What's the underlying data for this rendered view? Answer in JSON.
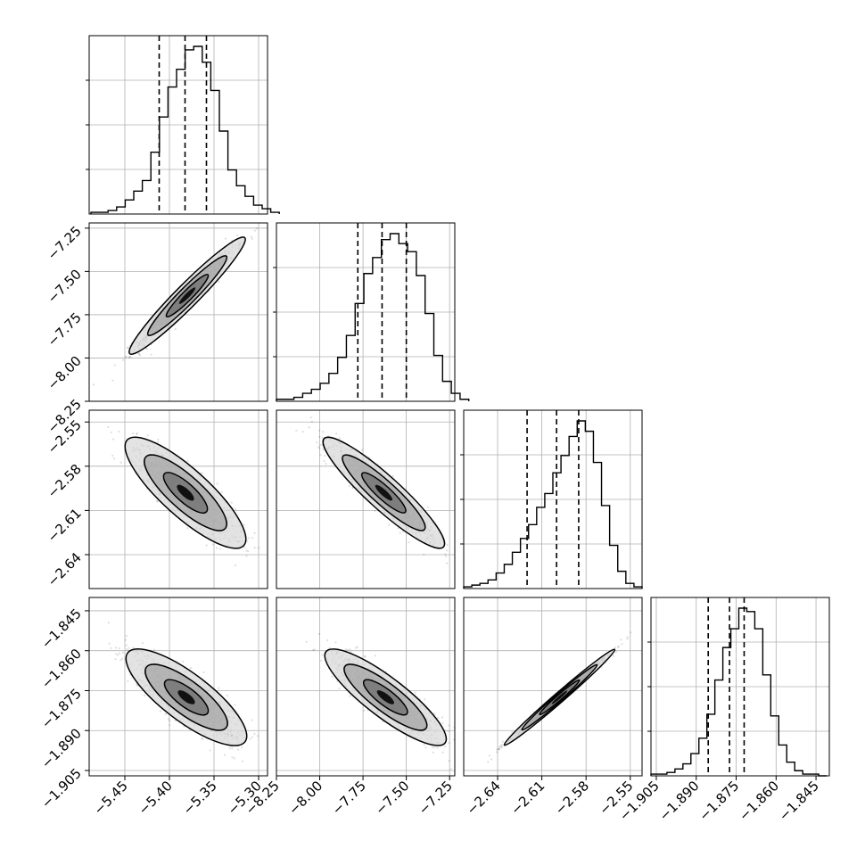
{
  "chart_data": {
    "type": "corner",
    "n_params": 4,
    "grid": true,
    "params": [
      {
        "range": [
          -5.49,
          -5.29
        ],
        "x_ticks": [
          "−5.45",
          "−5.40",
          "−5.35",
          "−5.30"
        ],
        "x_tick_values": [
          -5.45,
          -5.4,
          -5.35,
          -5.3
        ],
        "quantiles": [
          -5.4115,
          -5.3825,
          -5.3585
        ],
        "hist_edges_start": -5.488,
        "hist_bin_width": 0.0096,
        "hist_counts": [
          1,
          1,
          2,
          4,
          8,
          13,
          19,
          35,
          55,
          72,
          82,
          93,
          95,
          86,
          70,
          47,
          25,
          16,
          10,
          5,
          3,
          1
        ]
      },
      {
        "range": [
          -8.25,
          -7.22
        ],
        "x_ticks": [
          "−8.25",
          "−8.00",
          "−7.75",
          "−7.50",
          "−7.25"
        ],
        "x_tick_values": [
          -8.25,
          -8.0,
          -7.75,
          -7.5,
          -7.25
        ],
        "y_ticks": [
          "−8.25",
          "−8.00",
          "−7.75",
          "−7.50",
          "−7.25"
        ],
        "quantiles": [
          -7.78,
          -7.64,
          -7.5
        ],
        "hist_edges_start": -8.25,
        "hist_bin_width": 0.0505,
        "hist_counts": [
          1,
          1,
          2,
          4,
          6,
          9,
          14,
          22,
          33,
          49,
          64,
          72,
          81,
          84,
          79,
          75,
          63,
          44,
          23,
          10,
          4,
          1
        ]
      },
      {
        "range": [
          -2.663,
          -2.542
        ],
        "x_ticks": [
          "−2.64",
          "−2.61",
          "−2.58",
          "−2.55"
        ],
        "x_tick_values": [
          -2.64,
          -2.61,
          -2.58,
          -2.55
        ],
        "y_ticks": [
          "−2.55",
          "−2.58",
          "−2.61",
          "−2.64"
        ],
        "y_tick_values": [
          -2.55,
          -2.58,
          -2.61,
          -2.64
        ],
        "quantiles": [
          -2.62,
          -2.6,
          -2.585
        ],
        "hist_edges_start": -2.663,
        "hist_bin_width": 0.0055,
        "hist_counts": [
          1,
          2,
          3,
          5,
          9,
          14,
          21,
          29,
          37,
          47,
          55,
          67,
          77,
          88,
          97,
          91,
          73,
          48,
          25,
          10,
          3,
          1
        ]
      },
      {
        "range": [
          -1.907,
          -1.84
        ],
        "x_ticks": [
          "−1.905",
          "−1.890",
          "−1.875",
          "−1.860",
          "−1.845"
        ],
        "x_tick_values": [
          -1.905,
          -1.89,
          -1.875,
          -1.86,
          -1.845
        ],
        "y_ticks": [
          "−1.845",
          "−1.860",
          "−1.875",
          "−1.890",
          "−1.905"
        ],
        "y_tick_values": [
          -1.845,
          -1.86,
          -1.875,
          -1.89,
          -1.905
        ],
        "quantiles": [
          -1.8855,
          -1.8775,
          -1.872
        ],
        "hist_edges_start": -1.907,
        "hist_bin_width": 0.003,
        "hist_counts": [
          1,
          1,
          2,
          4,
          7,
          13,
          22,
          36,
          56,
          75,
          86,
          98,
          96,
          86,
          59,
          35,
          18,
          8,
          3,
          1,
          1,
          0
        ]
      }
    ],
    "joint": [
      {
        "row": 1,
        "col": 0,
        "mean": [
          -5.38,
          -7.64
        ],
        "std": [
          0.026,
          0.135
        ],
        "rho": 0.97
      },
      {
        "row": 2,
        "col": 0,
        "mean": [
          -5.382,
          -2.598
        ],
        "std": [
          0.027,
          0.015
        ],
        "rho": -0.85
      },
      {
        "row": 2,
        "col": 1,
        "mean": [
          -7.63,
          -2.598
        ],
        "std": [
          0.14,
          0.015
        ],
        "rho": -0.93
      },
      {
        "row": 3,
        "col": 0,
        "mean": [
          -5.381,
          -1.8775
        ],
        "std": [
          0.027,
          0.0072
        ],
        "rho": -0.82
      },
      {
        "row": 3,
        "col": 1,
        "mean": [
          -7.62,
          -1.8775
        ],
        "std": [
          0.14,
          0.0072
        ],
        "rho": -0.88
      },
      {
        "row": 3,
        "col": 2,
        "mean": [
          -2.598,
          -1.8775
        ],
        "std": [
          0.015,
          0.0072
        ],
        "rho": 0.995
      }
    ]
  }
}
